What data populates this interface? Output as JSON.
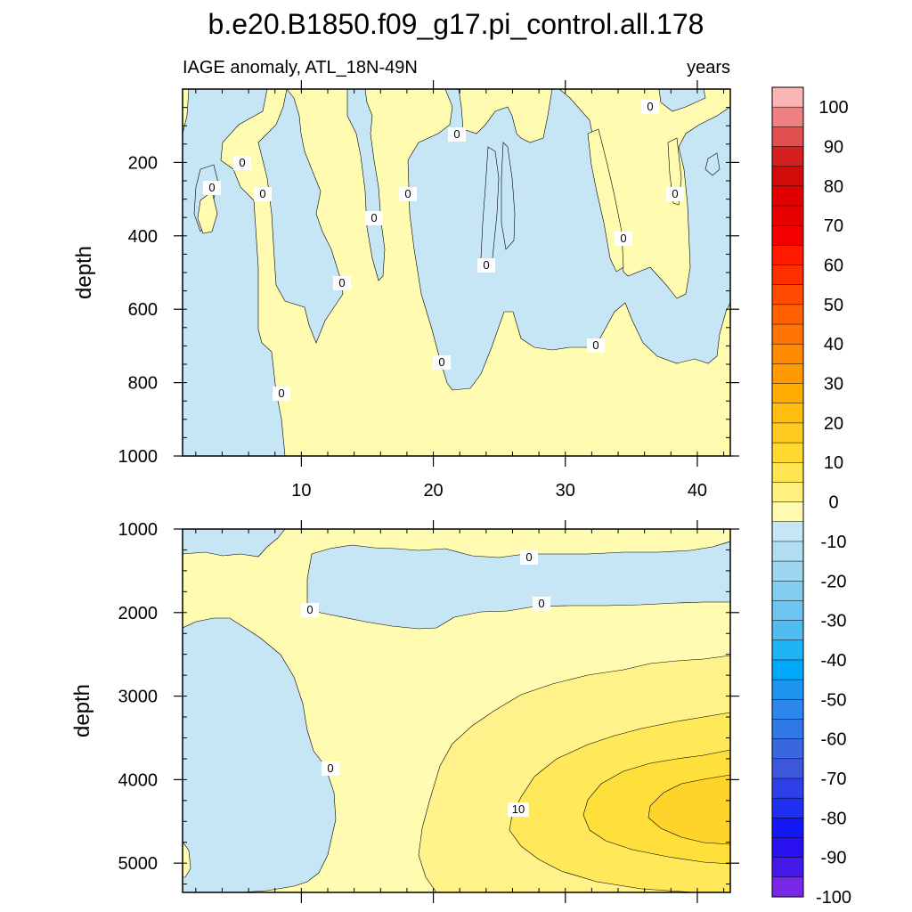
{
  "chart_data": [
    {
      "type": "heatmap",
      "title": "b.e20.B1850.f09_g17.pi_control.all.178",
      "subtitle_left": "IAGE anomaly, ATL_18N-49N",
      "subtitle_right": "years",
      "ylabel": "depth",
      "xlabel": "",
      "xlim": [
        1,
        42.5
      ],
      "ylim": [
        1000,
        0
      ],
      "x_ticks": [
        10,
        20,
        30,
        40
      ],
      "x_tick_labels": [
        "10",
        "20",
        "30",
        "40"
      ],
      "y_ticks": [
        200,
        400,
        600,
        800,
        1000
      ],
      "y_tick_labels": [
        "200",
        "400",
        "600",
        "800",
        "1000"
      ],
      "contour_labels": [
        "0",
        "0",
        "0",
        "0",
        "0",
        "0",
        "0",
        "0",
        "0",
        "0",
        "0",
        "0",
        "0",
        "0",
        "0",
        "0"
      ]
    },
    {
      "type": "heatmap",
      "title": "",
      "ylabel": "depth",
      "xlabel": "",
      "xlim": [
        1,
        42.5
      ],
      "ylim": [
        5350,
        1000
      ],
      "x_ticks": [
        10,
        20,
        30,
        40
      ],
      "y_ticks": [
        1000,
        2000,
        3000,
        4000,
        5000
      ],
      "y_tick_labels": [
        "1000",
        "2000",
        "3000",
        "4000",
        "5000"
      ],
      "contour_labels": [
        "0",
        "0",
        "0",
        "0",
        "0",
        "10"
      ]
    }
  ],
  "colorbar": {
    "labels": [
      "100",
      "90",
      "80",
      "70",
      "60",
      "50",
      "40",
      "30",
      "20",
      "10",
      "0",
      "-10",
      "-20",
      "-30",
      "-40",
      "-50",
      "-60",
      "-70",
      "-80",
      "-90",
      "-100"
    ],
    "colors": [
      "#fbb5b5",
      "#f08080",
      "#e05050",
      "#d42020",
      "#d20a0a",
      "#e00000",
      "#e80000",
      "#f40000",
      "#ff1a00",
      "#ff3000",
      "#ff4a00",
      "#ff6000",
      "#ff7300",
      "#ff8a00",
      "#ff9a00",
      "#ffac00",
      "#ffbd10",
      "#ffcb20",
      "#ffd830",
      "#ffe550",
      "#fff080",
      "#fffab0",
      "#c6e6f5",
      "#b0ddf0",
      "#9dd6ef",
      "#85cdef",
      "#6ec4f0",
      "#50bcf0",
      "#20b4f5",
      "#00a8f8",
      "#1c96f0",
      "#2c86ec",
      "#3078e8",
      "#3a66e0",
      "#3c56dc",
      "#3040e8",
      "#2030f0",
      "#1418f5",
      "#2810f0",
      "#4418e8",
      "#7a28e8"
    ],
    "label_colors": [
      "#000000"
    ]
  },
  "colors": {
    "positive_fill": "#fffcb2",
    "negative_fill": "#c6e6f5",
    "level_10": "#fff28a",
    "level_15": "#ffe85a",
    "level_20": "#ffdf3a",
    "level_25": "#ffd42a",
    "contour_line": "#000000"
  }
}
